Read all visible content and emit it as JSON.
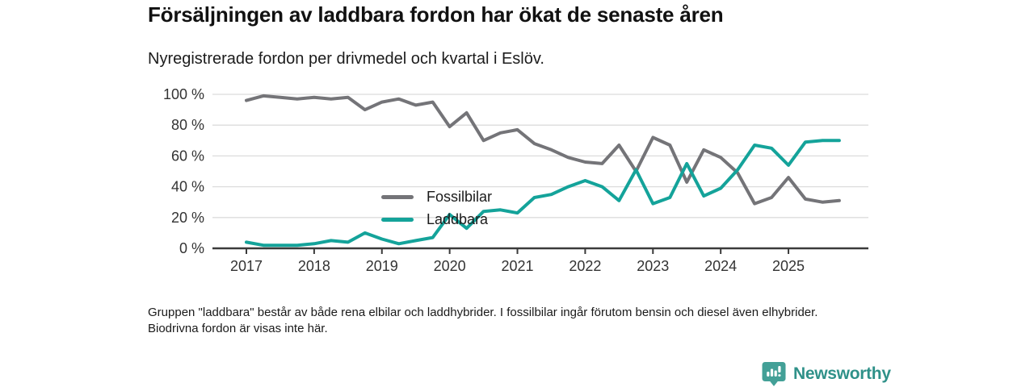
{
  "header": {
    "title": "Försäljningen av laddbara fordon har ökat de senaste åren",
    "subtitle": "Nyregistrerade fordon per drivmedel och kvartal i Eslöv."
  },
  "chart_data": {
    "type": "line",
    "unit": "%",
    "grid": true,
    "legend_position": "inside-top-left",
    "ylim": [
      0,
      100
    ],
    "yticks": [
      {
        "label": "0 %",
        "value": 0
      },
      {
        "label": "20 %",
        "value": 20
      },
      {
        "label": "40 %",
        "value": 40
      },
      {
        "label": "60 %",
        "value": 60
      },
      {
        "label": "80 %",
        "value": 80
      },
      {
        "label": "100 %",
        "value": 100
      }
    ],
    "xticks": [
      "2017",
      "2018",
      "2019",
      "2020",
      "2021",
      "2022",
      "2023",
      "2024",
      "2025"
    ],
    "x_quarters": [
      "2017 Q1",
      "2017 Q2",
      "2017 Q3",
      "2017 Q4",
      "2018 Q1",
      "2018 Q2",
      "2018 Q3",
      "2018 Q4",
      "2019 Q1",
      "2019 Q2",
      "2019 Q3",
      "2019 Q4",
      "2020 Q1",
      "2020 Q2",
      "2020 Q3",
      "2020 Q4",
      "2021 Q1",
      "2021 Q2",
      "2021 Q3",
      "2021 Q4",
      "2022 Q1",
      "2022 Q2",
      "2022 Q3",
      "2022 Q4",
      "2023 Q1",
      "2023 Q2",
      "2023 Q3",
      "2023 Q4",
      "2024 Q1",
      "2024 Q2",
      "2024 Q3",
      "2024 Q4",
      "2025 Q1",
      "2025 Q2",
      "2025 Q3",
      "2025 Q4"
    ],
    "series": [
      {
        "name": "Fossilbilar",
        "color": "#747478",
        "values": [
          96,
          99,
          98,
          97,
          98,
          97,
          98,
          90,
          95,
          97,
          93,
          95,
          79,
          88,
          70,
          75,
          77,
          68,
          64,
          59,
          56,
          55,
          67,
          50,
          72,
          67,
          43,
          64,
          59,
          49,
          29,
          33,
          46,
          32,
          30,
          31
        ]
      },
      {
        "name": "Laddbara",
        "color": "#14a39a",
        "values": [
          4,
          2,
          2,
          2,
          3,
          5,
          4,
          10,
          6,
          3,
          5,
          7,
          22,
          13,
          24,
          25,
          23,
          33,
          35,
          40,
          44,
          40,
          31,
          51,
          29,
          33,
          55,
          34,
          39,
          51,
          67,
          65,
          54,
          69,
          70,
          70
        ]
      }
    ],
    "axis_color": "#3a3a3a",
    "grid_color": "#dcdcdc",
    "tick_label_color": "#333333"
  },
  "footnote": {
    "text": "Gruppen \"laddbara\" består av både rena elbilar och laddhybrider. I fossilbilar ingår förutom bensin och diesel även elhybrider. Biodrivna fordon är visas inte här."
  },
  "branding": {
    "name": "Newsworthy",
    "icon_color": "#43a097",
    "text_color": "#2f9189"
  }
}
